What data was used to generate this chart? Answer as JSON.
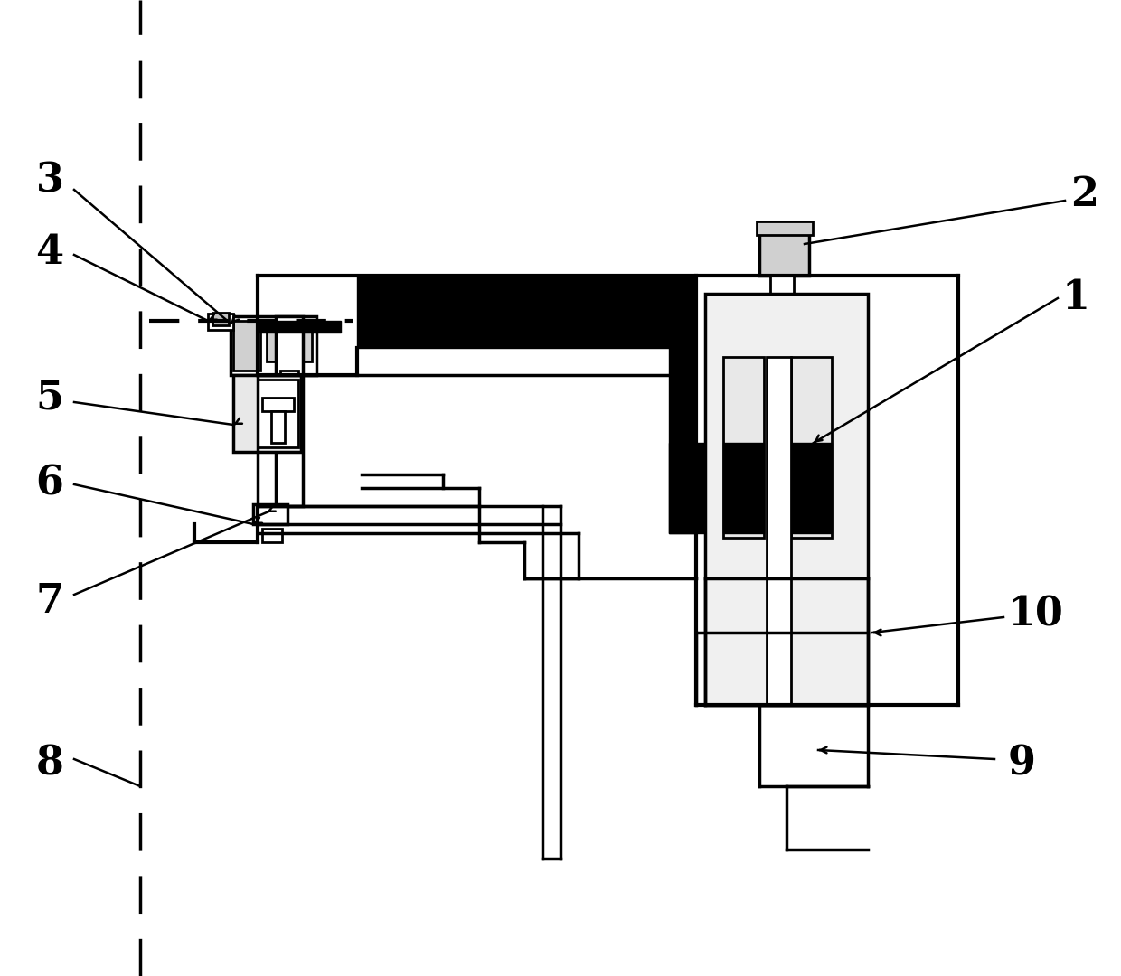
{
  "bg_color": "#ffffff",
  "line_color": "#000000",
  "label_fontsize": 32,
  "fig_width": 12.4,
  "fig_height": 10.8,
  "dpi": 100
}
